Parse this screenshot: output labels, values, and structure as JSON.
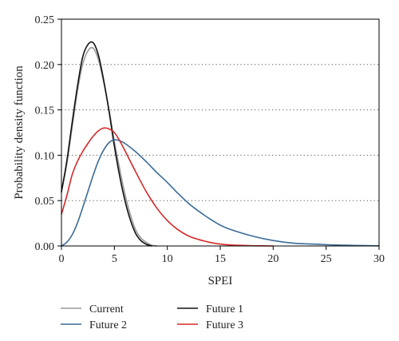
{
  "chart_data": {
    "type": "line",
    "xlabel": "SPEI",
    "ylabel": "Probability density function",
    "xlim": [
      0,
      30
    ],
    "ylim": [
      0,
      0.25
    ],
    "x_ticks": [
      "0",
      "5",
      "10",
      "15",
      "20",
      "25",
      "30"
    ],
    "y_ticks": [
      "0.00",
      "0.05",
      "0.10",
      "0.15",
      "0.20",
      "0.25"
    ],
    "grid": "horizontal dotted",
    "legend_position": "bottom",
    "series": [
      {
        "name": "Current",
        "color": "#9a9a9a",
        "x": [
          0,
          0.5,
          1,
          1.5,
          2,
          2.5,
          3,
          3.5,
          4,
          4.5,
          5,
          5.5,
          6,
          6.5,
          7,
          7.5,
          8,
          8.5,
          9
        ],
        "y": [
          0.059,
          0.09,
          0.13,
          0.17,
          0.2,
          0.215,
          0.218,
          0.205,
          0.18,
          0.15,
          0.115,
          0.085,
          0.057,
          0.035,
          0.018,
          0.009,
          0.004,
          0.001,
          0.0
        ]
      },
      {
        "name": "Future 1",
        "color": "#111111",
        "x": [
          0,
          0.5,
          1,
          1.5,
          2,
          2.5,
          3,
          3.5,
          4,
          4.5,
          5,
          5.5,
          6,
          6.5,
          7,
          7.5,
          8,
          8.5
        ],
        "y": [
          0.06,
          0.093,
          0.135,
          0.175,
          0.208,
          0.222,
          0.224,
          0.21,
          0.182,
          0.148,
          0.11,
          0.077,
          0.05,
          0.029,
          0.014,
          0.006,
          0.002,
          0.0
        ]
      },
      {
        "name": "Future 2",
        "color": "#3a6b96",
        "x": [
          0,
          0.5,
          1,
          1.5,
          2,
          2.5,
          3,
          3.5,
          4,
          4.5,
          5,
          5.5,
          6,
          7,
          8,
          9,
          10,
          11,
          12,
          13,
          14,
          15,
          16,
          18,
          20,
          22,
          24,
          26,
          28,
          30
        ],
        "y": [
          0.0,
          0.004,
          0.012,
          0.025,
          0.042,
          0.06,
          0.078,
          0.094,
          0.106,
          0.114,
          0.117,
          0.116,
          0.113,
          0.104,
          0.093,
          0.081,
          0.07,
          0.058,
          0.047,
          0.038,
          0.03,
          0.023,
          0.018,
          0.011,
          0.006,
          0.003,
          0.002,
          0.001,
          0.0005,
          0.0002
        ]
      },
      {
        "name": "Future 3",
        "color": "#d62828",
        "x": [
          0,
          0.5,
          1,
          1.5,
          2,
          2.5,
          3,
          3.5,
          4,
          4.5,
          5,
          5.5,
          6,
          7,
          8,
          9,
          10,
          11,
          12,
          13,
          14,
          15,
          16,
          18,
          20
        ],
        "y": [
          0.035,
          0.055,
          0.078,
          0.093,
          0.104,
          0.113,
          0.121,
          0.127,
          0.13,
          0.129,
          0.125,
          0.116,
          0.105,
          0.082,
          0.06,
          0.042,
          0.028,
          0.018,
          0.011,
          0.007,
          0.004,
          0.002,
          0.001,
          0.0003,
          0.0
        ]
      }
    ]
  }
}
